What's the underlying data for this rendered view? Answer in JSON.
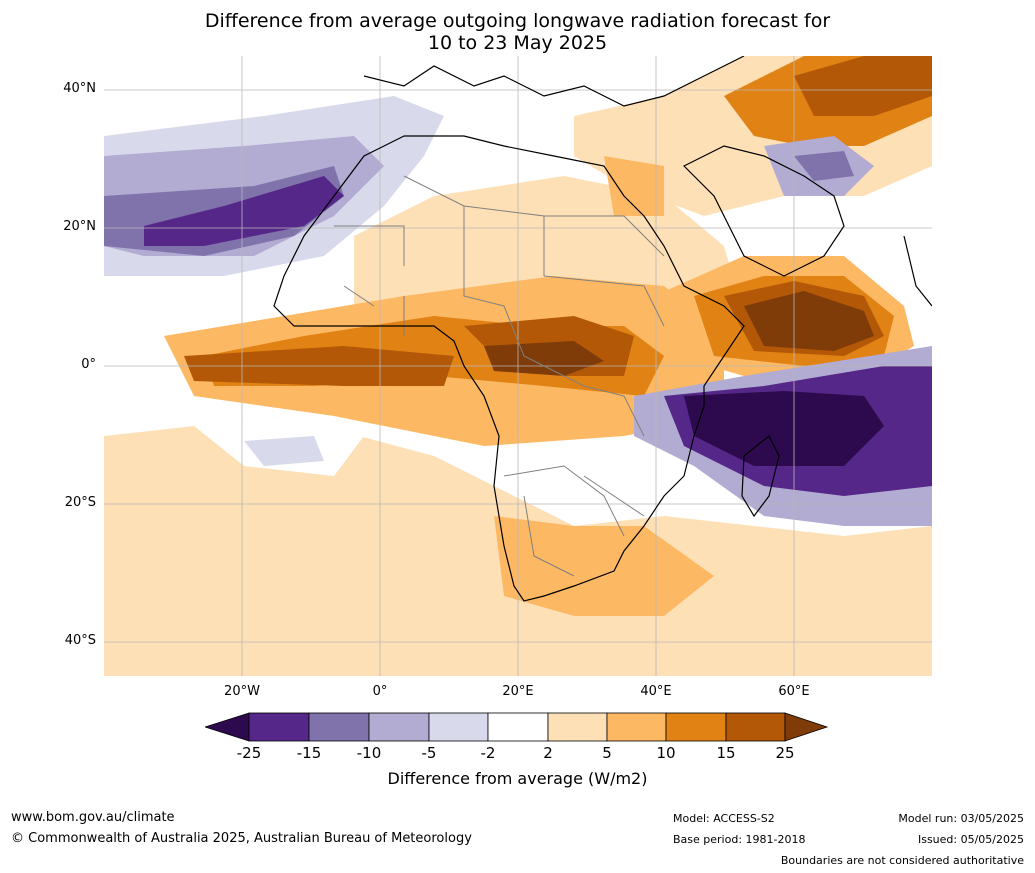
{
  "title": {
    "line1": "Difference from average outgoing longwave radiation forecast for",
    "line2": "10 to 23 May 2025"
  },
  "map": {
    "projection": "equirectangular",
    "lon_range": [
      -40,
      80
    ],
    "lat_range": [
      -45,
      45
    ],
    "lat_labels": [
      "40°N",
      "20°N",
      "0°",
      "20°S",
      "40°S"
    ],
    "lon_labels": [
      "20°W",
      "0°",
      "20°E",
      "40°E",
      "60°E"
    ],
    "grid": true,
    "layers": [
      "anomaly-fill",
      "coastlines",
      "country-borders",
      "gridlines"
    ]
  },
  "colorbar": {
    "title": "Difference from average (W/m2)",
    "ticks": [
      "-25",
      "-15",
      "-10",
      "-5",
      "-2",
      "2",
      "5",
      "10",
      "15",
      "25"
    ],
    "colors": {
      "below_-25": "#2d0a4e",
      "-25_-15": "#542788",
      "-15_-10": "#8073ac",
      "-10_-5": "#b2abd2",
      "-5_-2": "#d8daeb",
      "-2_2": "#ffffff",
      "2_5": "#fee0b6",
      "5_10": "#fdb863",
      "10_15": "#e08214",
      "15_25": "#b35806",
      "above_25": "#7f3b08"
    }
  },
  "footer": {
    "website": "www.bom.gov.au/climate",
    "copyright": "© Commonwealth of Australia 2025, Australian Bureau of Meteorology",
    "model": "Model: ACCESS-S2",
    "base_period": "Base period: 1981-2018",
    "model_run": "Model run: 03/05/2025",
    "issued": "Issued: 05/05/2025",
    "disclaimer": "Boundaries are not considered authoritative"
  }
}
